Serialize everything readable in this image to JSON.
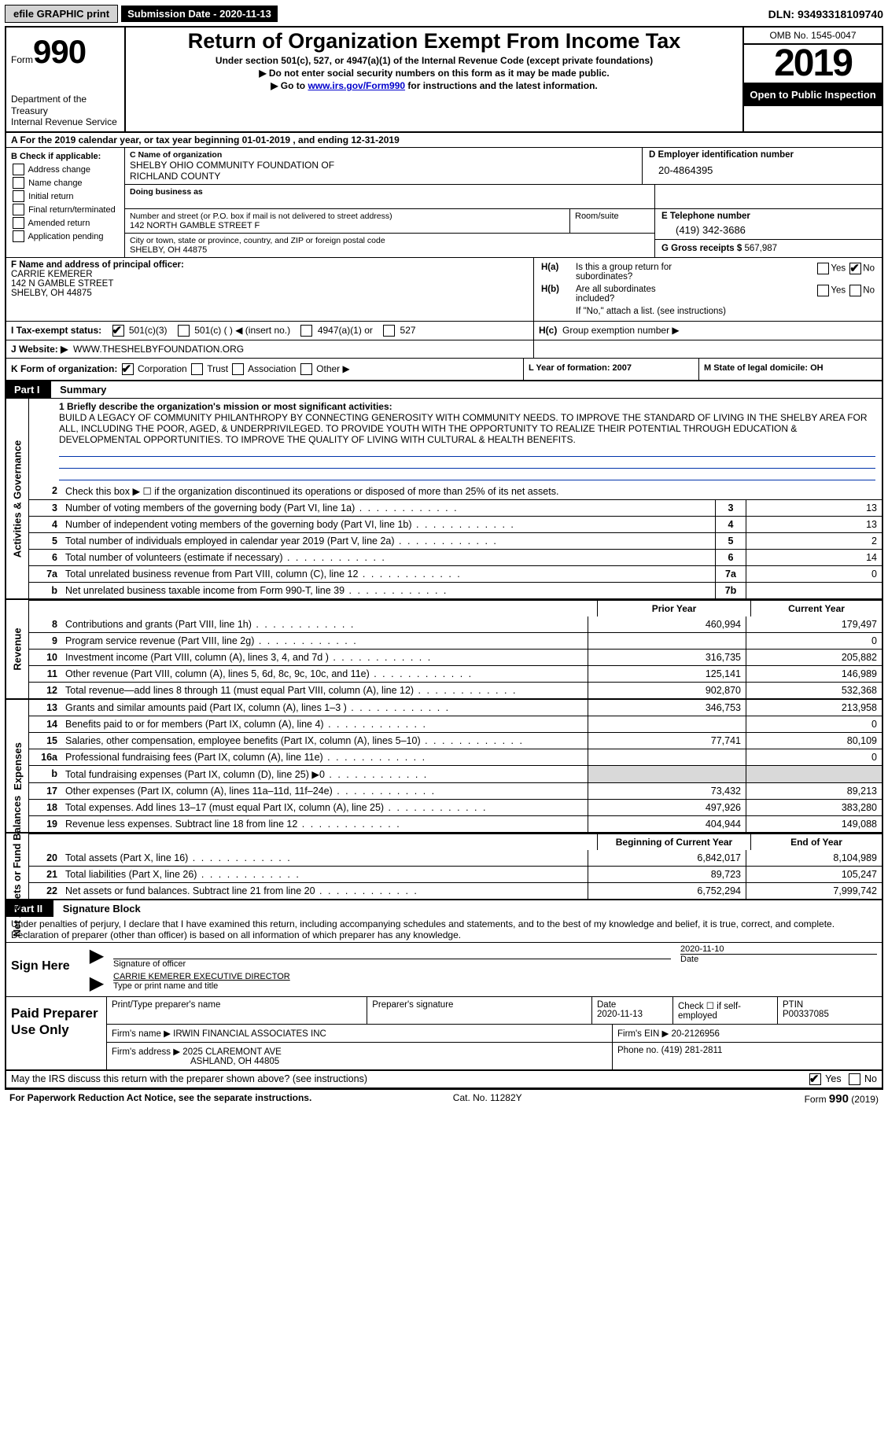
{
  "topbar": {
    "efile": "efile GRAPHIC print",
    "submission_label": "Submission Date - 2020-11-13",
    "dln": "DLN: 93493318109740"
  },
  "header": {
    "form_word": "Form",
    "form_number": "990",
    "dept1": "Department of the Treasury",
    "dept2": "Internal Revenue Service",
    "title": "Return of Organization Exempt From Income Tax",
    "subtitle": "Under section 501(c), 527, or 4947(a)(1) of the Internal Revenue Code (except private foundations)",
    "note1": "▶ Do not enter social security numbers on this form as it may be made public.",
    "note2_pre": "▶ Go to ",
    "note2_link": "www.irs.gov/Form990",
    "note2_post": " for instructions and the latest information.",
    "omb": "OMB No. 1545-0047",
    "year": "2019",
    "open": "Open to Public Inspection"
  },
  "lineA": "A For the 2019 calendar year, or tax year beginning 01-01-2019    , and ending 12-31-2019",
  "boxB": {
    "label": "B Check if applicable:",
    "addr_change": "Address change",
    "name_change": "Name change",
    "initial": "Initial return",
    "final": "Final return/terminated",
    "amended": "Amended return",
    "app_pending": "Application pending"
  },
  "boxC": {
    "name_lbl": "C Name of organization",
    "name1": "SHELBY OHIO COMMUNITY FOUNDATION OF",
    "name2": "RICHLAND COUNTY",
    "dba_lbl": "Doing business as",
    "street_lbl": "Number and street (or P.O. box if mail is not delivered to street address)",
    "street": "142 NORTH GAMBLE STREET F",
    "room_lbl": "Room/suite",
    "city_lbl": "City or town, state or province, country, and ZIP or foreign postal code",
    "city": "SHELBY, OH  44875"
  },
  "boxD": {
    "lbl": "D Employer identification number",
    "val": "20-4864395"
  },
  "boxE": {
    "lbl": "E Telephone number",
    "val": "(419) 342-3686"
  },
  "boxG": {
    "lbl": "G Gross receipts $",
    "val": "567,987"
  },
  "boxF": {
    "lbl": "F  Name and address of principal officer:",
    "l1": "CARRIE KEMERER",
    "l2": "142 N GAMBLE STREET",
    "l3": "SHELBY, OH  44875"
  },
  "boxH": {
    "a_lbl": "H(a)",
    "a_txt1": "Is this a group return for",
    "a_txt2": "subordinates?",
    "b_lbl": "H(b)",
    "b_txt1": "Are all subordinates",
    "b_txt2": "included?",
    "note": "If \"No,\" attach a list. (see instructions)",
    "c_lbl": "H(c)",
    "c_txt": "Group exemption number ▶",
    "yes": "Yes",
    "no": "No"
  },
  "rowI": {
    "lbl": "I   Tax-exempt status:",
    "o1": "501(c)(3)",
    "o2": "501(c) (   ) ◀ (insert no.)",
    "o3": "4947(a)(1) or",
    "o4": "527"
  },
  "rowJ": {
    "lbl": "J   Website: ▶",
    "val": "WWW.THESHELBYFOUNDATION.ORG"
  },
  "rowK": {
    "lbl": "K Form of organization:",
    "o1": "Corporation",
    "o2": "Trust",
    "o3": "Association",
    "o4": "Other ▶"
  },
  "rowL": "L Year of formation: 2007",
  "rowM": "M State of legal domicile: OH",
  "part1": {
    "tag": "Part I",
    "title": "Summary"
  },
  "sideA": "Activities & Governance",
  "sideR": "Revenue",
  "sideE": "Expenses",
  "sideN": "Net Assets or Fund Balances",
  "mission_lbl": "1  Briefly describe the organization's mission or most significant activities:",
  "mission_txt": "BUILD A LEGACY OF COMMUNITY PHILANTHROPY BY CONNECTING GENEROSITY WITH COMMUNITY NEEDS. TO IMPROVE THE STANDARD OF LIVING IN THE SHELBY AREA FOR ALL, INCLUDING THE POOR, AGED, & UNDERPRIVILEGED. TO PROVIDE YOUTH WITH THE OPPORTUNITY TO REALIZE THEIR POTENTIAL THROUGH EDUCATION & DEVELOPMENTAL OPPORTUNITIES. TO IMPROVE THE QUALITY OF LIVING WITH CULTURAL & HEALTH BENEFITS.",
  "lines_gov": [
    {
      "n": "2",
      "t": "Check this box ▶ ☐  if the organization discontinued its operations or disposed of more than 25% of its net assets."
    },
    {
      "n": "3",
      "t": "Number of voting members of the governing body (Part VI, line 1a)",
      "c": "3",
      "v": "13"
    },
    {
      "n": "4",
      "t": "Number of independent voting members of the governing body (Part VI, line 1b)",
      "c": "4",
      "v": "13"
    },
    {
      "n": "5",
      "t": "Total number of individuals employed in calendar year 2019 (Part V, line 2a)",
      "c": "5",
      "v": "2"
    },
    {
      "n": "6",
      "t": "Total number of volunteers (estimate if necessary)",
      "c": "6",
      "v": "14"
    },
    {
      "n": "7a",
      "t": "Total unrelated business revenue from Part VIII, column (C), line 12",
      "c": "7a",
      "v": "0"
    },
    {
      "n": "b",
      "t": "Net unrelated business taxable income from Form 990-T, line 39",
      "c": "7b",
      "v": ""
    }
  ],
  "hdr_prior": "Prior Year",
  "hdr_curr": "Current Year",
  "lines_rev": [
    {
      "n": "8",
      "t": "Contributions and grants (Part VIII, line 1h)",
      "p": "460,994",
      "c": "179,497"
    },
    {
      "n": "9",
      "t": "Program service revenue (Part VIII, line 2g)",
      "p": "",
      "c": "0"
    },
    {
      "n": "10",
      "t": "Investment income (Part VIII, column (A), lines 3, 4, and 7d )",
      "p": "316,735",
      "c": "205,882"
    },
    {
      "n": "11",
      "t": "Other revenue (Part VIII, column (A), lines 5, 6d, 8c, 9c, 10c, and 11e)",
      "p": "125,141",
      "c": "146,989"
    },
    {
      "n": "12",
      "t": "Total revenue—add lines 8 through 11 (must equal Part VIII, column (A), line 12)",
      "p": "902,870",
      "c": "532,368"
    }
  ],
  "lines_exp": [
    {
      "n": "13",
      "t": "Grants and similar amounts paid (Part IX, column (A), lines 1–3 )",
      "p": "346,753",
      "c": "213,958"
    },
    {
      "n": "14",
      "t": "Benefits paid to or for members (Part IX, column (A), line 4)",
      "p": "",
      "c": "0"
    },
    {
      "n": "15",
      "t": "Salaries, other compensation, employee benefits (Part IX, column (A), lines 5–10)",
      "p": "77,741",
      "c": "80,109"
    },
    {
      "n": "16a",
      "t": "Professional fundraising fees (Part IX, column (A), line 11e)",
      "p": "",
      "c": "0"
    },
    {
      "n": "b",
      "t": "Total fundraising expenses (Part IX, column (D), line 25) ▶0",
      "p": "GREY",
      "c": "GREY"
    },
    {
      "n": "17",
      "t": "Other expenses (Part IX, column (A), lines 11a–11d, 11f–24e)",
      "p": "73,432",
      "c": "89,213"
    },
    {
      "n": "18",
      "t": "Total expenses. Add lines 13–17 (must equal Part IX, column (A), line 25)",
      "p": "497,926",
      "c": "383,280"
    },
    {
      "n": "19",
      "t": "Revenue less expenses. Subtract line 18 from line 12",
      "p": "404,944",
      "c": "149,088"
    }
  ],
  "hdr_begin": "Beginning of Current Year",
  "hdr_end": "End of Year",
  "lines_net": [
    {
      "n": "20",
      "t": "Total assets (Part X, line 16)",
      "p": "6,842,017",
      "c": "8,104,989"
    },
    {
      "n": "21",
      "t": "Total liabilities (Part X, line 26)",
      "p": "89,723",
      "c": "105,247"
    },
    {
      "n": "22",
      "t": "Net assets or fund balances. Subtract line 21 from line 20",
      "p": "6,752,294",
      "c": "7,999,742"
    }
  ],
  "part2": {
    "tag": "Part II",
    "title": "Signature Block"
  },
  "perjury": "Under penalties of perjury, I declare that I have examined this return, including accompanying schedules and statements, and to the best of my knowledge and belief, it is true, correct, and complete. Declaration of preparer (other than officer) is based on all information of which preparer has any knowledge.",
  "sign": {
    "here": "Sign Here",
    "sig_lbl": "Signature of officer",
    "sig_date": "2020-11-10",
    "date_lbl": "Date",
    "name": "CARRIE KEMERER  EXECUTIVE DIRECTOR",
    "name_lbl": "Type or print name and title"
  },
  "paid": {
    "title": "Paid Preparer Use Only",
    "h1": "Print/Type preparer's name",
    "h2": "Preparer's signature",
    "h3_lbl": "Date",
    "h3_val": "2020-11-13",
    "h4": "Check ☐ if self-employed",
    "h5_lbl": "PTIN",
    "h5_val": "P00337085",
    "firm_name_lbl": "Firm's name    ▶",
    "firm_name": "IRWIN FINANCIAL ASSOCIATES INC",
    "firm_ein_lbl": "Firm's EIN ▶",
    "firm_ein": "20-2126956",
    "firm_addr_lbl": "Firm's address ▶",
    "firm_addr1": "2025 CLAREMONT AVE",
    "firm_addr2": "ASHLAND, OH  44805",
    "phone_lbl": "Phone no.",
    "phone": "(419) 281-2811"
  },
  "discuss": {
    "txt": "May the IRS discuss this return with the preparer shown above? (see instructions)",
    "yes": "Yes",
    "no": "No"
  },
  "footer": {
    "left": "For Paperwork Reduction Act Notice, see the separate instructions.",
    "mid": "Cat. No. 11282Y",
    "right_pre": "Form ",
    "right_form": "990",
    "right_post": " (2019)"
  }
}
